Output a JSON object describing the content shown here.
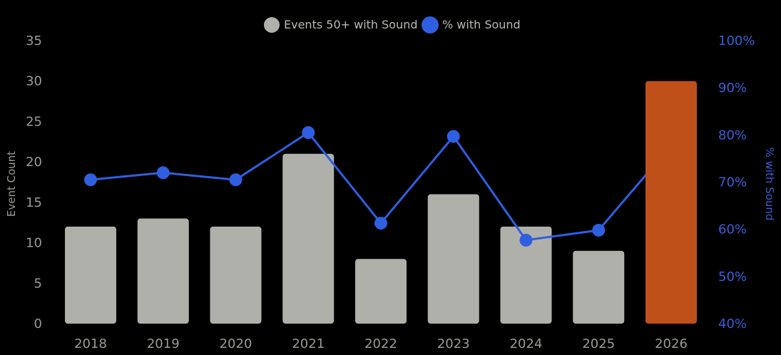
{
  "chart_data": {
    "type": "bar",
    "categories": [
      "2018",
      "2019",
      "2020",
      "2021",
      "2022",
      "2023",
      "2024",
      "2025",
      "2026"
    ],
    "series": [
      {
        "name": "Events 50+ with Sound",
        "type": "bar",
        "axis": "left",
        "values": [
          12,
          13,
          12,
          21,
          8,
          16,
          12,
          9,
          30
        ],
        "colors": [
          "#b0b0aa",
          "#b0b0aa",
          "#b0b0aa",
          "#b0b0aa",
          "#b0b0aa",
          "#b0b0aa",
          "#b0b0aa",
          "#b0b0aa",
          "#c0501a"
        ]
      },
      {
        "name": "% with Sound",
        "type": "line",
        "axis": "right",
        "values": [
          70.5,
          72,
          70.5,
          80.5,
          61.3,
          79.7,
          57.7,
          59.8,
          77.8
        ],
        "color": "#2f5fe0"
      }
    ],
    "ylabel": "Event Count",
    "ylabel_right": "% with Sound",
    "ylim": [
      0,
      35
    ],
    "ylim_right": [
      40,
      100
    ],
    "yticks": [
      "0",
      "5",
      "10",
      "15",
      "20",
      "25",
      "30",
      "35"
    ],
    "yticks_right": [
      "40%",
      "50%",
      "60%",
      "70%",
      "80%",
      "90%",
      "100%"
    ],
    "legend_position": "top-center",
    "grid": false
  },
  "legend": [
    {
      "label": "Events 50+ with Sound",
      "color": "#b0b0aa"
    },
    {
      "label": "% with Sound",
      "color": "#2f5fe0"
    }
  ]
}
